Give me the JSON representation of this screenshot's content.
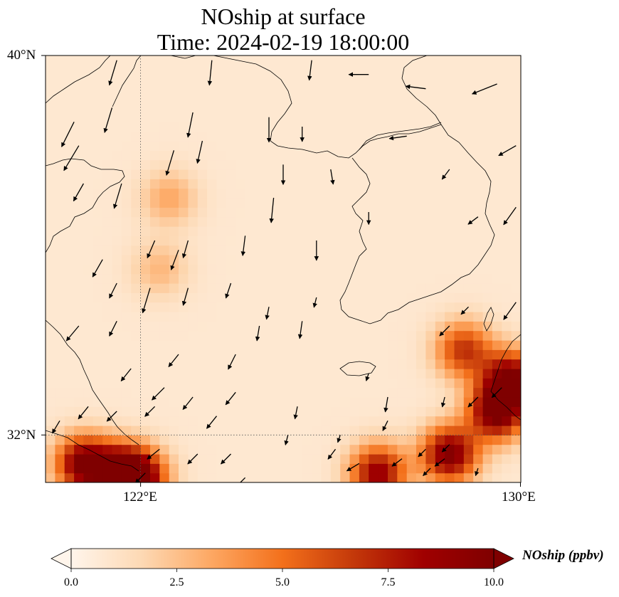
{
  "title": {
    "line1": "NOship at surface",
    "line2": "Time: 2024-02-19 18:00:00"
  },
  "axes": {
    "lat_ticks": [
      "40°N",
      "32°N"
    ],
    "lon_ticks": [
      "122°E",
      "130°E"
    ],
    "lon_range": [
      120,
      130
    ],
    "lat_range": [
      31,
      40
    ],
    "gridlines": [
      {
        "lon": 122
      },
      {
        "lat": 32
      }
    ]
  },
  "colorbar": {
    "label": "NOship (ppbv)",
    "ticks": [
      "0.0",
      "2.5",
      "5.0",
      "7.5",
      "10.0"
    ],
    "range": [
      0,
      10
    ],
    "extend": "both",
    "colormap": [
      "#fff5eb",
      "#fdd9b4",
      "#fda762",
      "#f3701b",
      "#c4390a",
      "#a00000",
      "#7f0000"
    ]
  },
  "field": {
    "background_value": 0.8,
    "hotspots": [
      {
        "lon": 120.8,
        "lat": 31.4,
        "value": 9.0
      },
      {
        "lon": 121.6,
        "lat": 31.2,
        "value": 8.5
      },
      {
        "lon": 122.0,
        "lat": 31.1,
        "value": 7.0
      },
      {
        "lon": 127.0,
        "lat": 31.2,
        "value": 8.0
      },
      {
        "lon": 128.5,
        "lat": 31.6,
        "value": 9.0
      },
      {
        "lon": 129.5,
        "lat": 32.5,
        "value": 9.5
      },
      {
        "lon": 129.8,
        "lat": 33.2,
        "value": 8.5
      },
      {
        "lon": 128.8,
        "lat": 33.8,
        "value": 6.0
      },
      {
        "lon": 122.6,
        "lat": 37.0,
        "value": 2.5
      },
      {
        "lon": 122.4,
        "lat": 35.5,
        "value": 2.0
      }
    ]
  },
  "wind_vectors": [
    {
      "lon": 121.5,
      "lat": 39.9,
      "u": -0.3,
      "v": -1.0
    },
    {
      "lon": 123.5,
      "lat": 39.9,
      "u": -0.1,
      "v": -1.0
    },
    {
      "lon": 125.6,
      "lat": 39.9,
      "u": -0.1,
      "v": -0.8
    },
    {
      "lon": 126.8,
      "lat": 39.6,
      "u": -0.8,
      "v": 0.0
    },
    {
      "lon": 128.0,
      "lat": 39.3,
      "u": -0.8,
      "v": 0.1
    },
    {
      "lon": 129.5,
      "lat": 39.4,
      "u": -1.0,
      "v": -0.4
    },
    {
      "lon": 120.6,
      "lat": 38.6,
      "u": -0.5,
      "v": -1.0
    },
    {
      "lon": 121.4,
      "lat": 38.9,
      "u": -0.3,
      "v": -1.0
    },
    {
      "lon": 123.1,
      "lat": 38.8,
      "u": -0.2,
      "v": -1.0
    },
    {
      "lon": 124.7,
      "lat": 38.7,
      "u": 0.0,
      "v": -1.0
    },
    {
      "lon": 125.4,
      "lat": 38.5,
      "u": 0.0,
      "v": -0.6
    },
    {
      "lon": 127.6,
      "lat": 38.3,
      "u": -0.7,
      "v": -0.1
    },
    {
      "lon": 129.9,
      "lat": 38.1,
      "u": -0.7,
      "v": -0.4
    },
    {
      "lon": 120.7,
      "lat": 38.1,
      "u": -0.6,
      "v": -1.0
    },
    {
      "lon": 122.7,
      "lat": 38.0,
      "u": -0.3,
      "v": -1.0
    },
    {
      "lon": 123.3,
      "lat": 38.2,
      "u": -0.2,
      "v": -0.9
    },
    {
      "lon": 125.0,
      "lat": 37.7,
      "u": 0.0,
      "v": -0.8
    },
    {
      "lon": 126.0,
      "lat": 37.6,
      "u": 0.1,
      "v": -0.6
    },
    {
      "lon": 128.5,
      "lat": 37.6,
      "u": -0.3,
      "v": -0.4
    },
    {
      "lon": 120.8,
      "lat": 37.3,
      "u": -0.4,
      "v": -0.7
    },
    {
      "lon": 121.6,
      "lat": 37.3,
      "u": -0.3,
      "v": -1.0
    },
    {
      "lon": 124.8,
      "lat": 37.0,
      "u": -0.1,
      "v": -1.0
    },
    {
      "lon": 126.8,
      "lat": 36.7,
      "u": 0.0,
      "v": -0.5
    },
    {
      "lon": 129.1,
      "lat": 36.6,
      "u": -0.4,
      "v": -0.3
    },
    {
      "lon": 129.9,
      "lat": 36.8,
      "u": -0.5,
      "v": -0.7
    },
    {
      "lon": 122.3,
      "lat": 36.1,
      "u": -0.3,
      "v": -0.7
    },
    {
      "lon": 123.0,
      "lat": 36.1,
      "u": -0.2,
      "v": -0.7
    },
    {
      "lon": 124.2,
      "lat": 36.2,
      "u": -0.1,
      "v": -0.8
    },
    {
      "lon": 125.7,
      "lat": 36.1,
      "u": 0.0,
      "v": -0.8
    },
    {
      "lon": 121.2,
      "lat": 35.7,
      "u": -0.4,
      "v": -0.7
    },
    {
      "lon": 122.8,
      "lat": 35.9,
      "u": -0.3,
      "v": -0.8
    },
    {
      "lon": 121.5,
      "lat": 35.2,
      "u": -0.3,
      "v": -0.6
    },
    {
      "lon": 122.2,
      "lat": 35.1,
      "u": -0.3,
      "v": -1.0
    },
    {
      "lon": 123.0,
      "lat": 35.1,
      "u": -0.2,
      "v": -0.7
    },
    {
      "lon": 123.9,
      "lat": 35.2,
      "u": -0.2,
      "v": -0.6
    },
    {
      "lon": 124.7,
      "lat": 34.7,
      "u": -0.1,
      "v": -0.5
    },
    {
      "lon": 125.7,
      "lat": 34.9,
      "u": -0.1,
      "v": -0.4
    },
    {
      "lon": 128.9,
      "lat": 34.7,
      "u": -0.3,
      "v": -0.3
    },
    {
      "lon": 129.9,
      "lat": 34.8,
      "u": -0.5,
      "v": -0.7
    },
    {
      "lon": 120.7,
      "lat": 34.3,
      "u": -0.5,
      "v": -0.6
    },
    {
      "lon": 121.5,
      "lat": 34.4,
      "u": -0.3,
      "v": -0.6
    },
    {
      "lon": 124.5,
      "lat": 34.3,
      "u": -0.1,
      "v": -0.6
    },
    {
      "lon": 125.4,
      "lat": 34.4,
      "u": -0.1,
      "v": -0.7
    },
    {
      "lon": 128.5,
      "lat": 34.3,
      "u": -0.4,
      "v": -0.4
    },
    {
      "lon": 122.8,
      "lat": 33.7,
      "u": -0.4,
      "v": -0.5
    },
    {
      "lon": 124.0,
      "lat": 33.7,
      "u": -0.3,
      "v": -0.6
    },
    {
      "lon": 126.8,
      "lat": 33.3,
      "u": -0.1,
      "v": -0.3
    },
    {
      "lon": 121.8,
      "lat": 33.4,
      "u": -0.4,
      "v": -0.5
    },
    {
      "lon": 122.5,
      "lat": 33.0,
      "u": -0.5,
      "v": -0.5
    },
    {
      "lon": 123.1,
      "lat": 32.8,
      "u": -0.4,
      "v": -0.5
    },
    {
      "lon": 124.0,
      "lat": 32.9,
      "u": -0.4,
      "v": -0.5
    },
    {
      "lon": 125.3,
      "lat": 32.6,
      "u": -0.1,
      "v": -0.5
    },
    {
      "lon": 127.2,
      "lat": 32.8,
      "u": -0.1,
      "v": -0.6
    },
    {
      "lon": 128.4,
      "lat": 32.8,
      "u": -0.1,
      "v": -0.4
    },
    {
      "lon": 129.1,
      "lat": 32.8,
      "u": -0.4,
      "v": -0.4
    },
    {
      "lon": 129.6,
      "lat": 33.0,
      "u": -0.4,
      "v": -0.4
    },
    {
      "lon": 120.9,
      "lat": 32.6,
      "u": -0.4,
      "v": -0.5
    },
    {
      "lon": 121.5,
      "lat": 32.5,
      "u": -0.4,
      "v": -0.4
    },
    {
      "lon": 122.3,
      "lat": 32.6,
      "u": -0.4,
      "v": -0.4
    },
    {
      "lon": 123.6,
      "lat": 32.4,
      "u": -0.4,
      "v": -0.5
    },
    {
      "lon": 125.1,
      "lat": 32.0,
      "u": -0.1,
      "v": -0.4
    },
    {
      "lon": 126.2,
      "lat": 32.0,
      "u": -0.1,
      "v": -0.3
    },
    {
      "lon": 127.2,
      "lat": 32.3,
      "u": -0.2,
      "v": -0.4
    },
    {
      "lon": 128.0,
      "lat": 31.7,
      "u": -0.3,
      "v": -0.3
    },
    {
      "lon": 128.5,
      "lat": 31.8,
      "u": -0.3,
      "v": -0.3
    },
    {
      "lon": 122.4,
      "lat": 31.7,
      "u": -0.5,
      "v": -0.4
    },
    {
      "lon": 123.2,
      "lat": 31.6,
      "u": -0.4,
      "v": -0.4
    },
    {
      "lon": 123.9,
      "lat": 31.6,
      "u": -0.4,
      "v": -0.4
    },
    {
      "lon": 126.1,
      "lat": 31.7,
      "u": -0.3,
      "v": -0.4
    },
    {
      "lon": 127.5,
      "lat": 31.5,
      "u": -0.4,
      "v": -0.3
    },
    {
      "lon": 128.1,
      "lat": 31.3,
      "u": -0.3,
      "v": -0.3
    },
    {
      "lon": 128.4,
      "lat": 31.5,
      "u": -0.4,
      "v": -0.3
    },
    {
      "lon": 120.3,
      "lat": 32.3,
      "u": -0.3,
      "v": -0.5
    },
    {
      "lon": 122.1,
      "lat": 31.2,
      "u": -0.4,
      "v": -0.4
    },
    {
      "lon": 124.2,
      "lat": 31.1,
      "u": -0.4,
      "v": -0.4
    },
    {
      "lon": 126.6,
      "lat": 31.4,
      "u": -0.5,
      "v": -0.3
    },
    {
      "lon": 129.1,
      "lat": 31.3,
      "u": -0.1,
      "v": -0.3
    }
  ]
}
